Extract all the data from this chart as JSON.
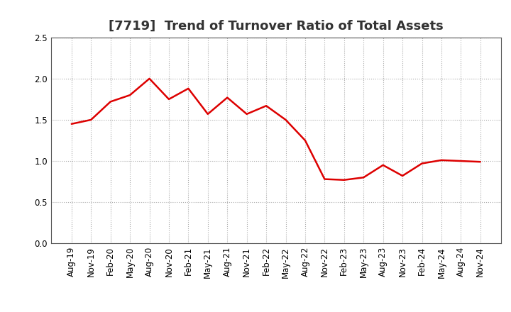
{
  "title": "[7719]  Trend of Turnover Ratio of Total Assets",
  "x_labels": [
    "Aug-19",
    "Nov-19",
    "Feb-20",
    "May-20",
    "Aug-20",
    "Nov-20",
    "Feb-21",
    "May-21",
    "Aug-21",
    "Nov-21",
    "Feb-22",
    "May-22",
    "Aug-22",
    "Nov-22",
    "Feb-23",
    "May-23",
    "Aug-23",
    "Nov-23",
    "Feb-24",
    "May-24",
    "Aug-24",
    "Nov-24"
  ],
  "y_values": [
    1.45,
    1.5,
    1.72,
    1.8,
    2.0,
    1.75,
    1.88,
    1.57,
    1.77,
    1.57,
    1.67,
    1.5,
    1.25,
    0.78,
    0.77,
    0.8,
    0.95,
    0.82,
    0.97,
    1.01,
    1.0,
    0.99
  ],
  "line_color": "#dd0000",
  "line_width": 1.8,
  "ylim": [
    0.0,
    2.5
  ],
  "yticks": [
    0.0,
    0.5,
    1.0,
    1.5,
    2.0,
    2.5
  ],
  "grid_color": "#aaaaaa",
  "bg_color": "#ffffff",
  "title_fontsize": 13,
  "tick_fontsize": 8.5
}
